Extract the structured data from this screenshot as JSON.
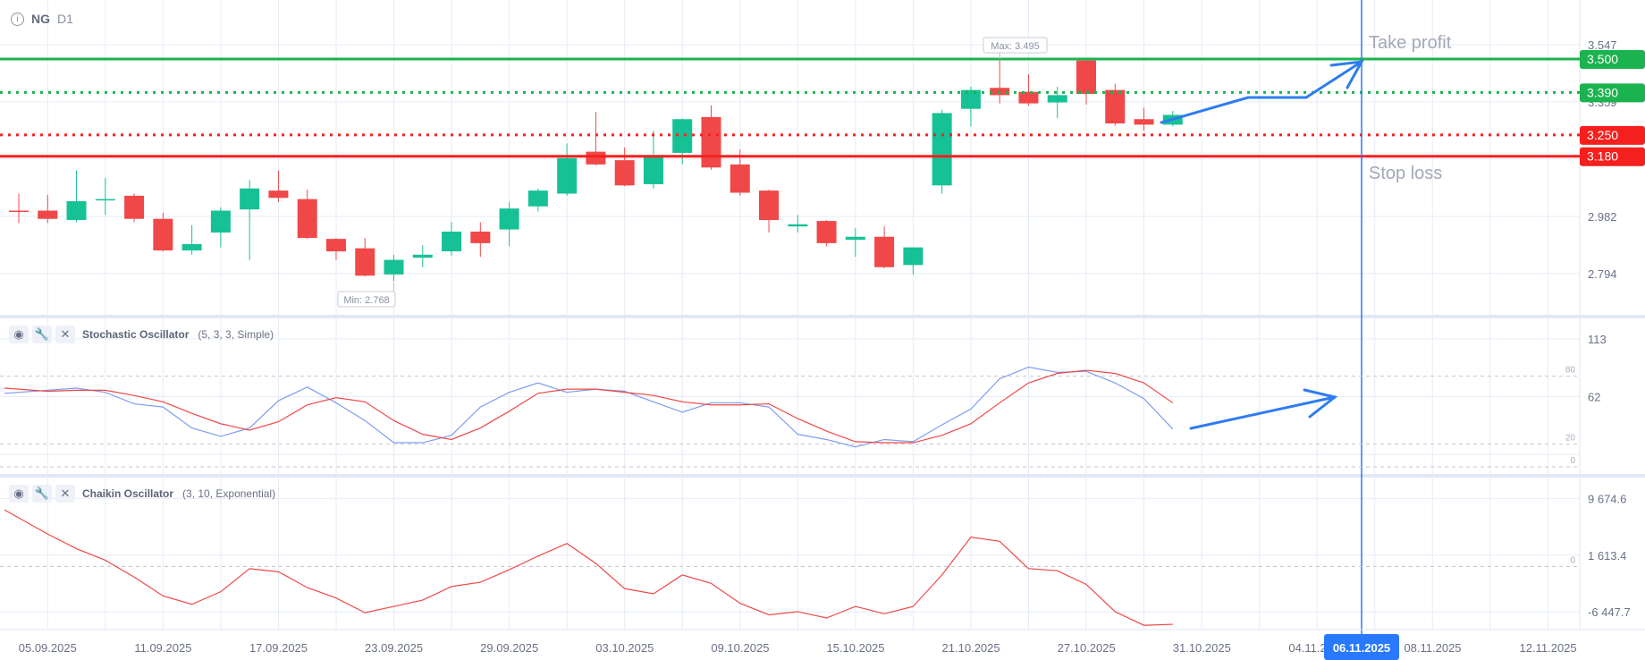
{
  "header": {
    "symbol": "NG",
    "timeframe": "D1",
    "info_icon": "info-icon"
  },
  "colors": {
    "up": "#17c196",
    "down": "#f04848",
    "take_profit": "#1bb34f",
    "stop_loss": "#f5201e",
    "drawing": "#2f7cf0",
    "stoch_k": "#7f9cf0",
    "stoch_d": "#f04848",
    "chaikin": "#f04848",
    "crosshair": "#2979ff"
  },
  "annotations": {
    "take_profit": "Take profit",
    "stop_loss": "Stop loss",
    "max": "Max: 3.495",
    "min": "Min: 2.768"
  },
  "levels": [
    {
      "name": "take-profit-line",
      "value": 3.5,
      "label": "3.500",
      "style": "solid",
      "color": "#1bb34f"
    },
    {
      "name": "entry-green-line",
      "value": 3.39,
      "label": "3.390",
      "style": "dotted",
      "color": "#1bb34f"
    },
    {
      "name": "entry-red-line",
      "value": 3.25,
      "label": "3.250",
      "style": "dotted",
      "color": "#f5201e"
    },
    {
      "name": "stop-loss-line",
      "value": 3.18,
      "label": "3.180",
      "style": "solid",
      "color": "#f5201e"
    }
  ],
  "price_axis": {
    "ticks": [
      "3.547",
      "3.359",
      "2.982",
      "2.794"
    ]
  },
  "stochastic": {
    "title": "Stochastic Oscillator",
    "params": "(5, 3, 3, Simple)",
    "axis_ticks": [
      "113",
      "62"
    ],
    "levels": [
      "80",
      "20",
      "0"
    ],
    "k": [
      64.9,
      67.6,
      69.5,
      65.8,
      55.6,
      52.8,
      34.3,
      26.9,
      34.3,
      58.4,
      70.4,
      56.5,
      40.8,
      21.3,
      21.3,
      27.8,
      52.8,
      65.8,
      74.1,
      65.8,
      68.6,
      66.7,
      57.4,
      48.2,
      56.5,
      56.5,
      52.8,
      28.7,
      24.1,
      17.6,
      24.1,
      22.2,
      37.1,
      51.0,
      77.8,
      88.0,
      83.4,
      84.3,
      74.1,
      60.2,
      33.4
    ],
    "d": [
      69.5,
      66.7,
      67.6,
      67.6,
      63.0,
      57.4,
      47.2,
      38.0,
      32.4,
      39.8,
      54.7,
      61.1,
      57.4,
      40.8,
      28.7,
      24.1,
      34.3,
      49.1,
      64.9,
      68.6,
      68.6,
      65.8,
      63.0,
      57.4,
      54.7,
      54.7,
      55.6,
      42.6,
      31.5,
      22.2,
      21.3,
      21.3,
      27.8,
      38.0,
      56.5,
      74.1,
      82.5,
      85.2,
      82.5,
      74.1,
      56.5
    ]
  },
  "chaikin": {
    "title": "Chaikin Oscillator",
    "params": "(3, 10, Exponential)",
    "axis_ticks": [
      "9 674.6",
      "1 613.4",
      "-6 447.7"
    ],
    "zero_label": "0",
    "values": [
      8057,
      4625,
      2536,
      895,
      -1492,
      -4178,
      -5371,
      -3581,
      -298,
      -746,
      -2984,
      -4476,
      -6565,
      -5670,
      -4774,
      -2835,
      -2238,
      -448,
      1492,
      3282,
      448,
      -3133,
      -3879,
      -1194,
      -2387,
      -5222,
      -6863,
      -6416,
      -7311,
      -5670,
      -6714,
      -5670,
      -1194,
      4178,
      3581,
      -298,
      -597,
      -2536,
      -6416,
      -8355,
      -8206
    ]
  },
  "time_axis": {
    "labels": [
      "05.09.2025",
      "11.09.2025",
      "17.09.2025",
      "23.09.2025",
      "29.09.2025",
      "03.10.2025",
      "09.10.2025",
      "15.10.2025",
      "21.10.2025",
      "27.10.2025",
      "31.10.2025",
      "04.11.2025",
      "08.11.2025",
      "12.11.2025"
    ],
    "crosshair_label": "06.11.2025"
  },
  "chart_data": {
    "type": "candlestick",
    "ohlc": [
      [
        3.001,
        3.057,
        2.96,
        3.0
      ],
      [
        3.001,
        3.053,
        2.96,
        2.974
      ],
      [
        2.97,
        3.133,
        2.963,
        3.032
      ],
      [
        3.036,
        3.108,
        2.987,
        3.039
      ],
      [
        3.05,
        3.057,
        2.963,
        2.974
      ],
      [
        2.974,
        2.994,
        2.867,
        2.87
      ],
      [
        2.87,
        2.953,
        2.856,
        2.891
      ],
      [
        2.929,
        3.012,
        2.88,
        3.001
      ],
      [
        3.005,
        3.101,
        2.839,
        3.074
      ],
      [
        3.067,
        3.133,
        3.029,
        3.043
      ],
      [
        3.039,
        3.07,
        2.908,
        2.911
      ],
      [
        2.908,
        2.911,
        2.839,
        2.867
      ],
      [
        2.877,
        2.911,
        2.784,
        2.787
      ],
      [
        2.791,
        2.856,
        2.768,
        2.839
      ],
      [
        2.846,
        2.887,
        2.815,
        2.856
      ],
      [
        2.867,
        2.963,
        2.853,
        2.932
      ],
      [
        2.932,
        2.963,
        2.849,
        2.894
      ],
      [
        2.939,
        3.029,
        2.884,
        3.008
      ],
      [
        3.015,
        3.074,
        2.998,
        3.067
      ],
      [
        3.057,
        3.222,
        3.05,
        3.174
      ],
      [
        3.195,
        3.326,
        3.15,
        3.153
      ],
      [
        3.167,
        3.209,
        3.081,
        3.084
      ],
      [
        3.088,
        3.264,
        3.074,
        3.177
      ],
      [
        3.191,
        3.305,
        3.153,
        3.302
      ],
      [
        3.309,
        3.347,
        3.136,
        3.143
      ],
      [
        3.153,
        3.202,
        3.05,
        3.06
      ],
      [
        3.067,
        3.07,
        2.929,
        2.97
      ],
      [
        2.949,
        2.987,
        2.929,
        2.956
      ],
      [
        2.967,
        2.97,
        2.884,
        2.894
      ],
      [
        2.905,
        2.943,
        2.849,
        2.915
      ],
      [
        2.915,
        2.949,
        2.811,
        2.815
      ],
      [
        2.822,
        2.88,
        2.791,
        2.88
      ],
      [
        3.084,
        3.333,
        3.057,
        3.322
      ],
      [
        3.336,
        3.409,
        3.278,
        3.398
      ],
      [
        3.405,
        3.495,
        3.354,
        3.381
      ],
      [
        3.392,
        3.45,
        3.347,
        3.354
      ],
      [
        3.357,
        3.409,
        3.305,
        3.381
      ],
      [
        3.495,
        3.495,
        3.35,
        3.385
      ],
      [
        3.398,
        3.419,
        3.281,
        3.288
      ],
      [
        3.302,
        3.34,
        3.264,
        3.284
      ],
      [
        3.284,
        3.329,
        3.278,
        3.316
      ]
    ],
    "ylim": [
      2.794,
      3.547
    ]
  }
}
